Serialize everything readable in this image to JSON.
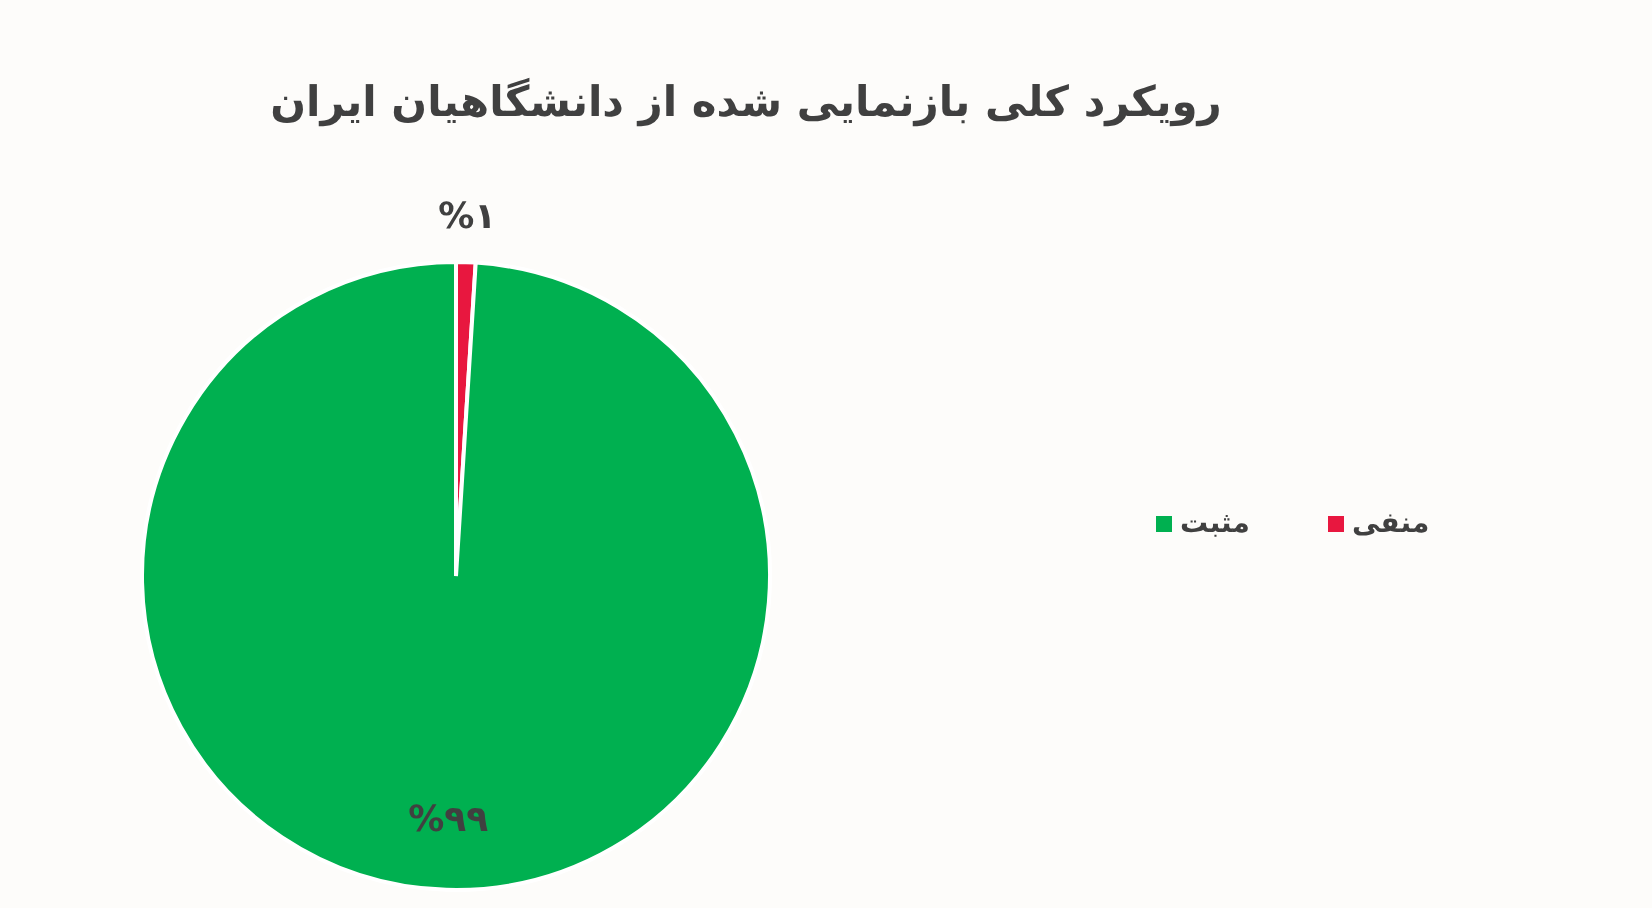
{
  "chart_data": {
    "type": "pie",
    "title": "رویکرد کلی بازنمایی شده از  دانشگاهیان ایران",
    "categories": [
      "منفی",
      "مثبت"
    ],
    "values": [
      1,
      99
    ],
    "colors": [
      "#e8173f",
      "#00b050"
    ],
    "value_labels": [
      "%۱",
      "%۹۹"
    ],
    "legend": "right"
  }
}
